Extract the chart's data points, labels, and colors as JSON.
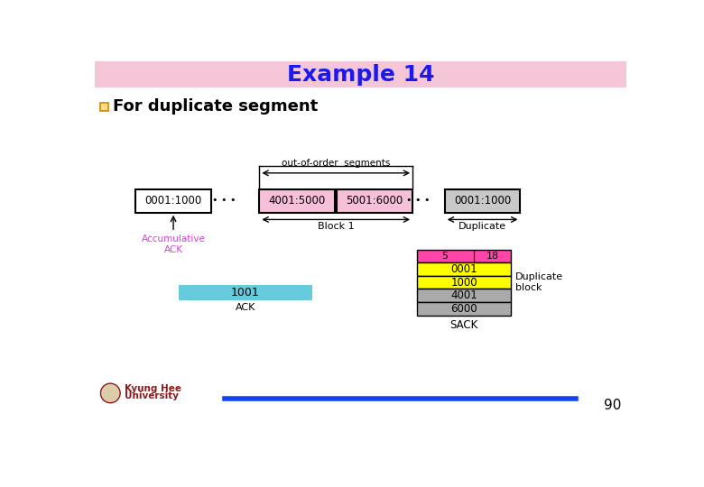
{
  "title": "Example 14",
  "subtitle": "For duplicate segment",
  "title_bg": "#f5c6d8",
  "title_color": "#1a1aee",
  "box1_label": "0001:1000",
  "box2_label": "4001:5000",
  "box3_label": "5001:6000",
  "box4_label": "0001:1000",
  "box1_color": "#ffffff",
  "box23_color": "#f5c0d8",
  "box4_color": "#c8c8c8",
  "ack_box_label": "1001",
  "ack_box_color": "#66ccdd",
  "ack_label": "ACK",
  "accum_ack_label": "Accumulative\nACK",
  "accum_ack_color": "#cc44cc",
  "block1_label": "Block 1",
  "duplicate_label": "Duplicate",
  "oof_label": "out-of-order  segments",
  "sack_rows": [
    "0001",
    "1000",
    "4001",
    "6000"
  ],
  "sack_colors": [
    "#ffff00",
    "#ffff00",
    "#aaaaaa",
    "#aaaaaa"
  ],
  "sack_header_label1": "5",
  "sack_header_label2": "18",
  "sack_header_color": "#ff44aa",
  "sack_label": "SACK",
  "duplicate_block_label": "Duplicate\nblock",
  "footer_line_color": "#1144ee",
  "page_number": "90",
  "logo_text1": "Kyung Hee",
  "logo_text2": "University"
}
